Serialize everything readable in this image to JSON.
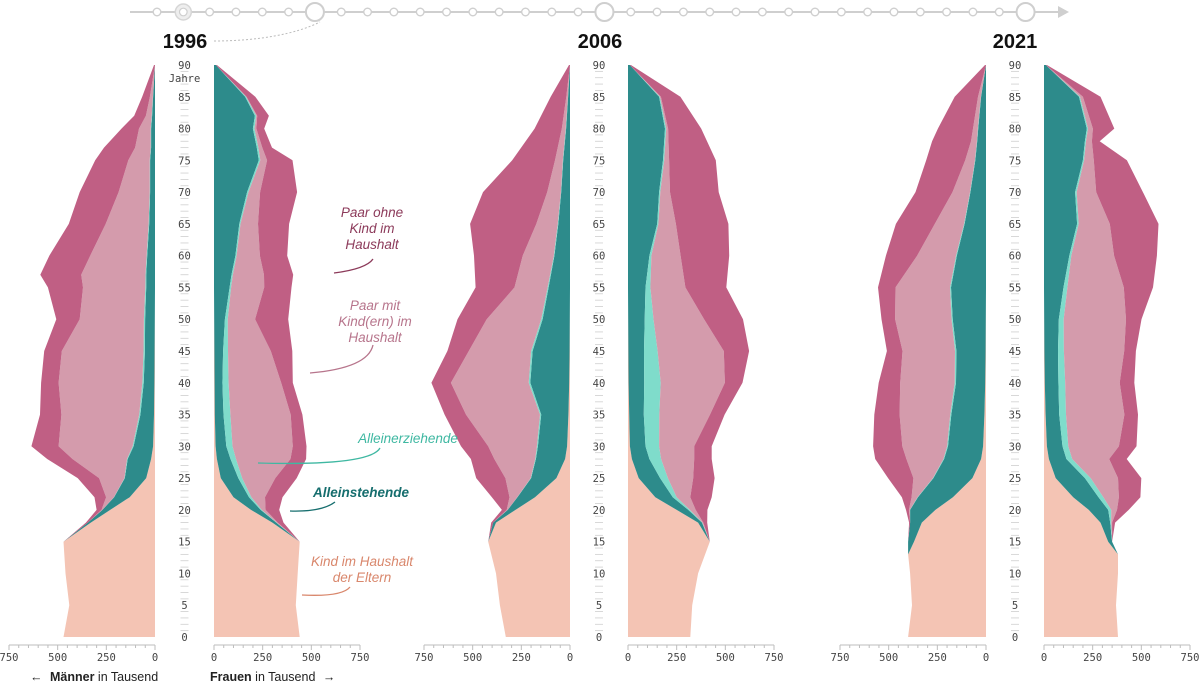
{
  "timeline": {
    "years_marked": [
      "1996",
      "2006",
      "2021"
    ]
  },
  "footer": {
    "men_arrow": "←",
    "men_bold": "Männer",
    "men_rest": " in Tausend",
    "women_bold": "Frauen",
    "women_rest": " in Tausend",
    "women_arrow": "→"
  },
  "age_axis": {
    "ticks": [
      0,
      5,
      10,
      15,
      20,
      25,
      30,
      35,
      40,
      45,
      50,
      55,
      60,
      65,
      70,
      75,
      80,
      85,
      90
    ],
    "unit_label": "Jahre",
    "range": [
      0,
      90
    ]
  },
  "colors": {
    "kind_im_haushalt_der_eltern": "#f4c4b4",
    "alleinstehende": "#2d8b8b",
    "alleinerziehende": "#7fdccb",
    "paar_mit_kindern": "#d49bac",
    "paar_ohne_kind": "#c05f84",
    "label_paar_ohne": "#8c3a5a",
    "label_paar_mit": "#b7758c",
    "label_alleinerziehende": "#3fb8a2",
    "label_alleinstehende": "#166e6e",
    "label_kind": "#d9876c"
  },
  "legend": {
    "paar_ohne_kind": [
      "Paar ohne",
      "Kind im",
      "Haushalt"
    ],
    "paar_mit_kindern": [
      "Paar mit",
      "Kind(ern) im",
      "Haushalt"
    ],
    "alleinerziehende": [
      "Alleinerziehende"
    ],
    "alleinstehende": [
      "Alleinstehende"
    ],
    "kind_im_haushalt_der_eltern": [
      "Kind im Haushalt",
      "der Eltern"
    ]
  },
  "chart_data": [
    {
      "type": "area",
      "title": "1996",
      "ylabel": "Jahre",
      "ylim": [
        0,
        90
      ],
      "xlim": [
        0,
        750
      ],
      "x_ticks": [
        0,
        250,
        500,
        750
      ],
      "age": [
        0,
        5,
        10,
        15,
        18,
        20,
        22,
        25,
        28,
        30,
        35,
        40,
        45,
        50,
        55,
        57,
        60,
        65,
        70,
        75,
        77,
        80,
        82,
        85,
        90
      ],
      "men": {
        "Kind im Haushalt der Eltern": [
          470,
          440,
          460,
          470,
          330,
          230,
          130,
          45,
          20,
          10,
          5,
          3,
          2,
          1,
          0,
          0,
          0,
          0,
          0,
          0,
          0,
          0,
          0,
          0,
          0
        ],
        "Alleinstehende": [
          0,
          0,
          0,
          0,
          15,
          40,
          80,
          110,
          120,
          100,
          70,
          55,
          50,
          50,
          45,
          45,
          40,
          30,
          25,
          25,
          20,
          20,
          15,
          10,
          0
        ],
        "Alleinerziehende": [
          0,
          0,
          0,
          0,
          0,
          0,
          1,
          2,
          4,
          5,
          6,
          7,
          7,
          6,
          5,
          4,
          3,
          3,
          2,
          2,
          2,
          2,
          2,
          1,
          0
        ],
        "Paar mit Kind(ern) im Haushalt": [
          0,
          0,
          0,
          0,
          0,
          5,
          40,
          130,
          280,
          380,
          400,
          430,
          420,
          330,
          320,
          330,
          290,
          220,
          160,
          110,
          80,
          60,
          30,
          15,
          0
        ],
        "Paar ohne Kind im Haushalt": [
          0,
          0,
          0,
          0,
          10,
          25,
          60,
          110,
          130,
          140,
          110,
          90,
          90,
          120,
          180,
          210,
          210,
          190,
          200,
          170,
          160,
          90,
          60,
          40,
          5
        ]
      },
      "women": {
        "Kind im Haushalt der Eltern": [
          440,
          420,
          430,
          440,
          300,
          190,
          100,
          35,
          15,
          8,
          4,
          3,
          2,
          1,
          0,
          0,
          0,
          0,
          0,
          0,
          0,
          0,
          0,
          0,
          0
        ],
        "Alleinstehende": [
          0,
          0,
          0,
          0,
          20,
          50,
          80,
          90,
          70,
          55,
          45,
          40,
          45,
          55,
          80,
          90,
          110,
          130,
          170,
          230,
          220,
          200,
          210,
          160,
          10
        ],
        "Alleinerziehende": [
          0,
          0,
          0,
          0,
          2,
          5,
          12,
          20,
          28,
          32,
          35,
          32,
          25,
          15,
          8,
          7,
          6,
          6,
          7,
          8,
          8,
          8,
          7,
          5,
          0
        ],
        "Paar mit Kind(ern) im Haushalt": [
          0,
          0,
          0,
          0,
          5,
          20,
          70,
          170,
          280,
          310,
          310,
          270,
          220,
          140,
          170,
          160,
          120,
          90,
          60,
          35,
          20,
          10,
          5,
          2,
          0
        ],
        "Paar ohne Kind im Haushalt": [
          0,
          0,
          0,
          0,
          30,
          70,
          90,
          110,
          80,
          70,
          60,
          60,
          110,
          170,
          140,
          150,
          140,
          160,
          190,
          130,
          50,
          40,
          60,
          45,
          5
        ]
      }
    },
    {
      "type": "area",
      "title": "2006",
      "ylabel": "Jahre",
      "ylim": [
        0,
        90
      ],
      "xlim": [
        0,
        750
      ],
      "x_ticks": [
        0,
        250,
        500,
        750
      ],
      "age": [
        0,
        5,
        10,
        15,
        18,
        20,
        22,
        25,
        28,
        30,
        35,
        40,
        45,
        50,
        55,
        60,
        65,
        70,
        75,
        80,
        85,
        90
      ],
      "men": {
        "Kind im Haushalt der Eltern": [
          330,
          360,
          380,
          420,
          380,
          280,
          180,
          70,
          25,
          15,
          8,
          4,
          2,
          1,
          0,
          0,
          0,
          0,
          0,
          0,
          0,
          0
        ],
        "Alleinstehende": [
          0,
          0,
          0,
          0,
          15,
          40,
          90,
          130,
          150,
          150,
          140,
          200,
          190,
          140,
          110,
          80,
          60,
          45,
          35,
          20,
          10,
          0
        ],
        "Alleinerziehende": [
          0,
          0,
          0,
          0,
          0,
          0,
          1,
          2,
          4,
          5,
          6,
          8,
          8,
          7,
          5,
          3,
          3,
          2,
          2,
          2,
          1,
          0
        ],
        "Paar mit Kind(ern) im Haushalt": [
          0,
          0,
          0,
          0,
          0,
          5,
          40,
          130,
          210,
          250,
          380,
          400,
          320,
          280,
          170,
          160,
          110,
          70,
          40,
          20,
          8,
          0
        ],
        "Paar ohne Kind im Haushalt": [
          0,
          0,
          0,
          0,
          10,
          25,
          90,
          150,
          120,
          140,
          110,
          100,
          110,
          150,
          200,
          250,
          340,
          330,
          220,
          140,
          80,
          5
        ]
      },
      "women": {
        "Kind im Haushalt der Eltern": [
          320,
          330,
          360,
          420,
          360,
          250,
          140,
          55,
          20,
          10,
          6,
          3,
          2,
          1,
          0,
          0,
          0,
          0,
          0,
          0,
          0,
          0
        ],
        "Alleinstehende": [
          0,
          0,
          0,
          0,
          20,
          60,
          90,
          110,
          90,
          80,
          75,
          80,
          80,
          85,
          90,
          110,
          150,
          160,
          180,
          190,
          160,
          10
        ],
        "Alleinerziehende": [
          0,
          0,
          0,
          0,
          2,
          8,
          20,
          40,
          60,
          70,
          80,
          85,
          70,
          45,
          25,
          10,
          6,
          6,
          6,
          6,
          4,
          0
        ],
        "Paar mit Kind(ern) im Haushalt": [
          0,
          0,
          0,
          0,
          5,
          30,
          70,
          130,
          170,
          180,
          260,
          330,
          340,
          260,
          180,
          150,
          90,
          50,
          25,
          10,
          5,
          0
        ],
        "Paar ohne Kind im Haushalt": [
          0,
          0,
          0,
          0,
          20,
          60,
          110,
          110,
          90,
          90,
          75,
          90,
          130,
          200,
          210,
          250,
          270,
          250,
          240,
          170,
          100,
          5
        ]
      }
    },
    {
      "type": "area",
      "title": "2021",
      "ylabel": "Jahre",
      "ylim": [
        0,
        90
      ],
      "xlim": [
        0,
        750
      ],
      "x_ticks": [
        0,
        250,
        500,
        750
      ],
      "age": [
        0,
        5,
        10,
        13,
        15,
        18,
        20,
        22,
        25,
        28,
        30,
        35,
        40,
        45,
        50,
        55,
        60,
        65,
        70,
        75,
        78,
        80,
        85,
        90
      ],
      "men": {
        "Kind im Haushalt der Eltern": [
          400,
          380,
          390,
          400,
          370,
          330,
          260,
          170,
          70,
          25,
          15,
          8,
          4,
          2,
          1,
          0,
          0,
          0,
          0,
          0,
          0,
          0,
          0,
          0
        ],
        "Alleinstehende": [
          0,
          0,
          0,
          0,
          30,
          60,
          130,
          180,
          200,
          190,
          180,
          170,
          150,
          150,
          170,
          180,
          150,
          110,
          80,
          55,
          45,
          40,
          25,
          0
        ],
        "Alleinerziehende": [
          0,
          0,
          0,
          0,
          0,
          0,
          1,
          2,
          3,
          4,
          5,
          6,
          7,
          7,
          6,
          5,
          4,
          3,
          2,
          2,
          2,
          2,
          1,
          0
        ],
        "Paar mit Kind(ern) im Haushalt": [
          0,
          0,
          0,
          0,
          0,
          0,
          5,
          30,
          100,
          190,
          230,
          260,
          280,
          270,
          290,
          280,
          200,
          150,
          90,
          50,
          30,
          25,
          15,
          0
        ],
        "Paar ohne Kind im Haushalt": [
          0,
          0,
          0,
          0,
          0,
          5,
          15,
          50,
          130,
          160,
          150,
          130,
          110,
          80,
          70,
          90,
          160,
          200,
          190,
          200,
          200,
          180,
          120,
          5
        ]
      },
      "women": {
        "Kind im Haushalt der Eltern": [
          380,
          370,
          380,
          380,
          330,
          290,
          230,
          150,
          60,
          25,
          15,
          8,
          4,
          2,
          1,
          0,
          0,
          0,
          0,
          0,
          0,
          0,
          0,
          0
        ],
        "Alleinstehende": [
          0,
          0,
          0,
          0,
          20,
          50,
          100,
          130,
          150,
          90,
          80,
          70,
          70,
          70,
          75,
          100,
          130,
          170,
          160,
          200,
          210,
          220,
          180,
          10
        ],
        "Alleinerziehende": [
          0,
          0,
          0,
          0,
          0,
          5,
          15,
          25,
          30,
          30,
          30,
          35,
          35,
          30,
          25,
          20,
          10,
          8,
          8,
          6,
          6,
          6,
          5,
          0
        ],
        "Paar mit Kind(ern) im Haushalt": [
          0,
          0,
          0,
          0,
          0,
          5,
          30,
          80,
          140,
          190,
          260,
          300,
          280,
          310,
          320,
          290,
          220,
          160,
          100,
          50,
          30,
          25,
          15,
          0
        ],
        "Paar ohne Kind im Haushalt": [
          0,
          0,
          0,
          0,
          0,
          15,
          60,
          110,
          120,
          90,
          90,
          70,
          75,
          60,
          80,
          150,
          220,
          250,
          240,
          170,
          40,
          110,
          90,
          5
        ]
      }
    }
  ]
}
